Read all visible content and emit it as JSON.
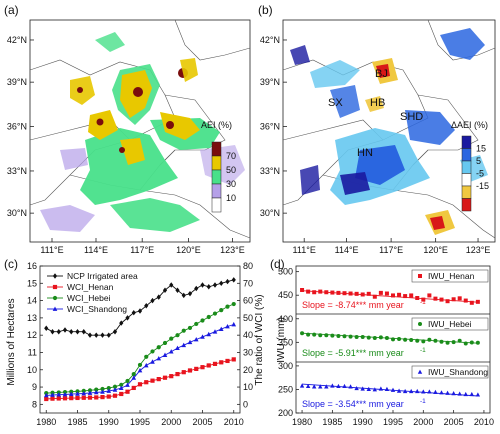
{
  "panels": {
    "a": {
      "label": "(a)",
      "lat_ticks": [
        "42°N",
        "39°N",
        "36°N",
        "33°N",
        "30°N"
      ],
      "lon_ticks": [
        "111°E",
        "114°E",
        "117°E",
        "120°E",
        "123°E"
      ],
      "legend_title": "AEI (%)",
      "legend_values": [
        "70",
        "50",
        "30",
        "10"
      ],
      "legend_colors": [
        "#7a0d0d",
        "#e8c800",
        "#48e08a",
        "#b5a0e8",
        "#ffffff"
      ]
    },
    "b": {
      "label": "(b)",
      "lat_ticks": [
        "42°N",
        "39°N",
        "36°N",
        "33°N",
        "30°N"
      ],
      "lon_ticks": [
        "111°E",
        "114°E",
        "117°E",
        "120°E",
        "123°E"
      ],
      "legend_title": "ΔAEI (%)",
      "legend_values": [
        "15",
        "5",
        "-5",
        "-15"
      ],
      "legend_colors": [
        "#1a1aa0",
        "#2a66e0",
        "#66c8f0",
        "#ffffff",
        "#f0c840",
        "#d81818"
      ],
      "regions": [
        "BJ",
        "SX",
        "HB",
        "SHD",
        "HN"
      ]
    }
  },
  "chart_data": [
    {
      "type": "line",
      "label": "(c)",
      "xlim": [
        1979,
        2011
      ],
      "xticks": [
        1980,
        1985,
        1990,
        1995,
        2000,
        2005,
        2010
      ],
      "ylabel": "Millions of Hectares",
      "ylim": [
        7.5,
        16
      ],
      "yticks": [
        8,
        9,
        10,
        11,
        12,
        13,
        14,
        15,
        16
      ],
      "y2label": "The ratio of WCI (%)",
      "y2lim": [
        -5,
        80
      ],
      "y2ticks": [
        0,
        10,
        20,
        30,
        40,
        50,
        60,
        70,
        80
      ],
      "x": [
        1980,
        1981,
        1982,
        1983,
        1984,
        1985,
        1986,
        1987,
        1988,
        1989,
        1990,
        1991,
        1992,
        1993,
        1994,
        1995,
        1996,
        1997,
        1998,
        1999,
        2000,
        2001,
        2002,
        2003,
        2004,
        2005,
        2006,
        2007,
        2008,
        2009,
        2010
      ],
      "series": [
        {
          "name": "NCP Irrigated area",
          "axis": "left",
          "marker": "diamond",
          "color": "#111111",
          "values": [
            12.4,
            12.2,
            12.2,
            12.3,
            12.2,
            12.2,
            12.2,
            12.0,
            12.0,
            12.0,
            12.0,
            12.2,
            12.7,
            13.0,
            13.3,
            13.4,
            13.7,
            14.0,
            14.2,
            14.6,
            14.9,
            14.6,
            14.3,
            14.4,
            14.7,
            14.9,
            14.8,
            14.9,
            15.0,
            15.1,
            15.2
          ]
        },
        {
          "name": "WCI_Henan",
          "axis": "right",
          "marker": "square",
          "color": "#e8141e",
          "values": [
            3.1,
            3.3,
            3.4,
            3.5,
            3.6,
            3.7,
            3.8,
            3.9,
            4.0,
            4.2,
            4.5,
            5.0,
            6.0,
            7.3,
            9.5,
            11.6,
            12.8,
            13.7,
            14.6,
            15.4,
            16.3,
            17.5,
            18.6,
            19.6,
            20.5,
            21.5,
            22.5,
            23.4,
            24.3,
            25.1,
            26.0
          ]
        },
        {
          "name": "WCI_Hebei",
          "axis": "right",
          "marker": "circle",
          "color": "#1a8c1a",
          "values": [
            6.5,
            6.7,
            6.9,
            7.1,
            7.3,
            7.5,
            7.8,
            8.1,
            8.5,
            8.9,
            9.4,
            10.2,
            11.3,
            13.5,
            17.5,
            22.8,
            27.5,
            30.6,
            33.0,
            35.5,
            38.0,
            40.0,
            42.6,
            44.2,
            46.5,
            48.5,
            50.5,
            52.5,
            54.5,
            56.5,
            58.0
          ]
        },
        {
          "name": "WCI_Shandong",
          "axis": "right",
          "marker": "triangle",
          "color": "#1a1ae0",
          "values": [
            5.2,
            5.4,
            5.6,
            5.7,
            5.9,
            6.1,
            6.3,
            6.6,
            6.9,
            7.2,
            7.7,
            8.4,
            9.4,
            11.2,
            15.3,
            19.6,
            22.5,
            24.6,
            26.5,
            28.5,
            30.5,
            32.5,
            34.2,
            35.9,
            37.5,
            39.0,
            40.5,
            42.0,
            43.5,
            45.0,
            46.2
          ]
        }
      ]
    },
    {
      "type": "scatter",
      "label": "(d)",
      "ylabel": "IWU (mm)",
      "xlim": [
        1979,
        2011
      ],
      "xticks": [
        1980,
        1985,
        1990,
        1995,
        2000,
        2005,
        2010
      ],
      "yticks": [
        200,
        250,
        300,
        350,
        400,
        450,
        500
      ],
      "subplots": [
        {
          "name": "IWU_Henan",
          "marker": "square",
          "color": "#e8141e",
          "slope_text": "Slope = -8.74*** mm year",
          "slope_sup": "-1",
          "trend": [
            [
              1980,
              423
            ],
            [
              2009,
              387
            ]
          ],
          "x": [
            1980,
            1981,
            1982,
            1983,
            1984,
            1985,
            1986,
            1987,
            1988,
            1989,
            1990,
            1991,
            1992,
            1993,
            1994,
            1995,
            1996,
            1997,
            1998,
            1999,
            2000,
            2001,
            2002,
            2003,
            2004,
            2005,
            2006,
            2007,
            2008,
            2009
          ],
          "values": [
            425,
            420,
            418,
            420,
            418,
            417,
            416,
            415,
            414,
            413,
            411,
            413,
            404,
            416,
            414,
            408,
            410,
            406,
            408,
            400,
            395,
            408,
            398,
            395,
            390,
            396,
            399,
            392,
            385,
            388
          ]
        },
        {
          "name": "IWU_Hebei",
          "marker": "circle",
          "color": "#1a8c1a",
          "slope_text": "Slope = -5.91*** mm year",
          "slope_sup": "-1",
          "trend": [
            [
              1980,
              344
            ],
            [
              2009,
              315
            ]
          ],
          "x": [
            1980,
            1981,
            1982,
            1983,
            1984,
            1985,
            1986,
            1987,
            1988,
            1989,
            1990,
            1991,
            1992,
            1993,
            1994,
            1995,
            1996,
            1997,
            1998,
            1999,
            2000,
            2001,
            2002,
            2003,
            2004,
            2005,
            2006,
            2007,
            2008,
            2009
          ],
          "values": [
            344,
            340,
            340,
            338,
            338,
            337,
            336,
            335,
            334,
            333,
            333,
            331,
            330,
            332,
            330,
            326,
            327,
            325,
            324,
            322,
            320,
            325,
            322,
            319,
            316,
            318,
            322,
            314,
            317,
            316
          ]
        },
        {
          "name": "IWU_Shandong",
          "marker": "triangle",
          "color": "#1a1ae0",
          "slope_text": "Slope = -3.54*** mm year",
          "slope_sup": "-1",
          "trend": [
            [
              1980,
              268
            ],
            [
              2009,
              240
            ]
          ],
          "x": [
            1980,
            1981,
            1982,
            1983,
            1984,
            1985,
            1986,
            1987,
            1988,
            1989,
            1990,
            1991,
            1992,
            1993,
            1994,
            1995,
            1996,
            1997,
            1998,
            1999,
            2000,
            2001,
            2002,
            2003,
            2004,
            2005,
            2006,
            2007,
            2008,
            2009
          ],
          "values": [
            264,
            263,
            262,
            262,
            262,
            264,
            263,
            263,
            262,
            258,
            257,
            256,
            255,
            257,
            256,
            254,
            252,
            251,
            251,
            251,
            250,
            250,
            249,
            248,
            247,
            246,
            245,
            244,
            244,
            243
          ]
        }
      ]
    }
  ]
}
